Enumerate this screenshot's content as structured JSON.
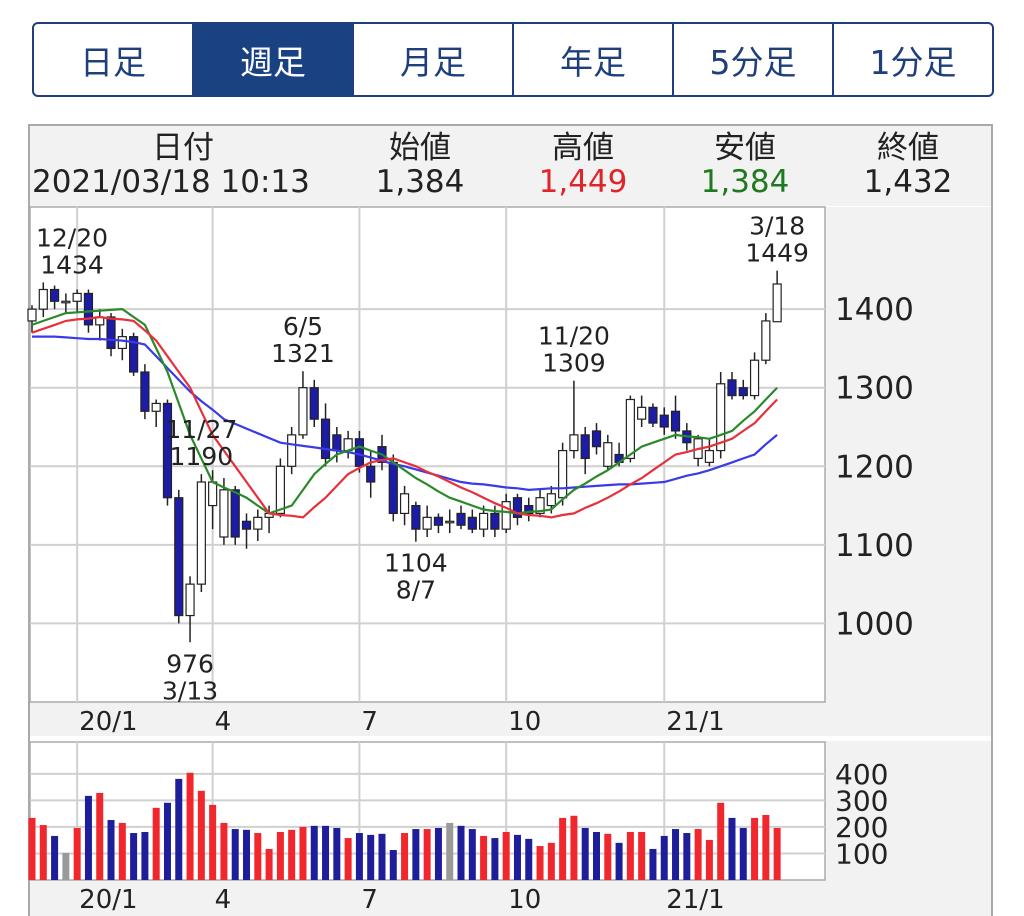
{
  "tabs": [
    {
      "label": "日足"
    },
    {
      "label": "週足",
      "active": true
    },
    {
      "label": "月足"
    },
    {
      "label": "年足"
    },
    {
      "label": "5分足"
    },
    {
      "label": "1分足"
    }
  ],
  "quote": {
    "columns": [
      {
        "label": "日付",
        "value": "2021/03/18 10:13"
      },
      {
        "label": "始値",
        "value": "1,384"
      },
      {
        "label": "高値",
        "value": "1,449",
        "color": "#e0242c"
      },
      {
        "label": "安値",
        "value": "1,384",
        "color": "#1f7a1f"
      },
      {
        "label": "終値",
        "value": "1,432"
      }
    ]
  },
  "chart_data": [
    {
      "type": "candlestick",
      "up_color": "#ffffff",
      "down_color": "#1c1ca6",
      "wick_color": "#222222",
      "categories": [
        null,
        null,
        null,
        null,
        "20/1",
        null,
        null,
        null,
        null,
        null,
        null,
        null,
        null,
        null,
        null,
        null,
        "4",
        null,
        null,
        null,
        null,
        null,
        null,
        null,
        null,
        null,
        null,
        null,
        null,
        "7",
        null,
        null,
        null,
        null,
        null,
        null,
        null,
        null,
        null,
        null,
        null,
        null,
        "10",
        null,
        null,
        null,
        null,
        null,
        null,
        null,
        null,
        null,
        null,
        null,
        null,
        null,
        "21/1",
        null,
        null,
        null,
        null,
        null,
        null,
        null,
        null,
        null,
        null
      ],
      "open": [
        1385,
        1400,
        1425,
        1410,
        1410,
        1420,
        1380,
        1390,
        1350,
        1365,
        1320,
        1270,
        1280,
        1160,
        1010,
        1050,
        1150,
        1110,
        1170,
        1130,
        1120,
        1135,
        1140,
        1200,
        1240,
        1300,
        1260,
        1240,
        1220,
        1235,
        1200,
        1225,
        1205,
        1140,
        1150,
        1120,
        1135,
        1130,
        1140,
        1135,
        1120,
        1140,
        1120,
        1160,
        1150,
        1140,
        1150,
        1160,
        1220,
        1240,
        1245,
        1200,
        1215,
        1210,
        1260,
        1275,
        1265,
        1270,
        1245,
        1210,
        1205,
        1220,
        1310,
        1300,
        1290,
        1335,
        1384
      ],
      "high": [
        1405,
        1434,
        1430,
        1420,
        1425,
        1425,
        1400,
        1395,
        1375,
        1370,
        1330,
        1285,
        1285,
        1170,
        1060,
        1190,
        1195,
        1185,
        1175,
        1140,
        1145,
        1150,
        1210,
        1250,
        1321,
        1310,
        1280,
        1250,
        1245,
        1245,
        1220,
        1240,
        1215,
        1175,
        1155,
        1150,
        1140,
        1145,
        1150,
        1145,
        1150,
        1150,
        1165,
        1165,
        1160,
        1170,
        1175,
        1230,
        1309,
        1250,
        1255,
        1240,
        1230,
        1290,
        1290,
        1280,
        1275,
        1290,
        1255,
        1240,
        1235,
        1320,
        1320,
        1310,
        1345,
        1395,
        1449
      ],
      "low": [
        1370,
        1390,
        1400,
        1395,
        1395,
        1370,
        1360,
        1340,
        1335,
        1315,
        1260,
        1250,
        1150,
        1000,
        976,
        1040,
        1120,
        1100,
        1100,
        1095,
        1105,
        1115,
        1135,
        1190,
        1235,
        1250,
        1200,
        1205,
        1210,
        1192,
        1160,
        1195,
        1130,
        1125,
        1104,
        1110,
        1115,
        1115,
        1120,
        1115,
        1110,
        1110,
        1115,
        1125,
        1130,
        1135,
        1140,
        1150,
        1210,
        1190,
        1215,
        1195,
        1200,
        1205,
        1250,
        1250,
        1240,
        1235,
        1220,
        1200,
        1200,
        1210,
        1285,
        1285,
        1285,
        1330,
        1384
      ],
      "close": [
        1400,
        1425,
        1410,
        1410,
        1420,
        1380,
        1390,
        1350,
        1365,
        1320,
        1270,
        1280,
        1160,
        1010,
        1050,
        1180,
        1180,
        1170,
        1110,
        1120,
        1135,
        1140,
        1200,
        1240,
        1300,
        1260,
        1210,
        1220,
        1235,
        1200,
        1180,
        1205,
        1140,
        1165,
        1120,
        1135,
        1125,
        1130,
        1125,
        1120,
        1140,
        1120,
        1155,
        1135,
        1140,
        1160,
        1165,
        1220,
        1240,
        1210,
        1225,
        1230,
        1205,
        1285,
        1275,
        1255,
        1250,
        1245,
        1230,
        1235,
        1220,
        1305,
        1290,
        1290,
        1335,
        1385,
        1432
      ],
      "series": [
        {
          "color": "#3a3ae8",
          "values": [
            1365,
            1365,
            1365,
            1364,
            1363,
            1362,
            1362,
            1361,
            1360,
            1358,
            1355,
            1340,
            1325,
            1310,
            1295,
            1283,
            1272,
            1260,
            1254,
            1248,
            1242,
            1236,
            1230,
            1228,
            1226,
            1224,
            1222,
            1220,
            1218,
            1215,
            1211,
            1207,
            1203,
            1200,
            1196,
            1192,
            1188,
            1184,
            1180,
            1178,
            1177,
            1175,
            1173,
            1172,
            1170,
            1171,
            1172,
            1172,
            1173,
            1174,
            1175,
            1176,
            1177,
            1177,
            1178,
            1179,
            1180,
            1184,
            1188,
            1191,
            1195,
            1200,
            1205,
            1210,
            1215,
            1228,
            1240
          ]
        },
        {
          "color": "#2a8a2a",
          "values": [
            1380,
            1385,
            1390,
            1395,
            1396,
            1397,
            1398,
            1399,
            1400,
            1390,
            1380,
            1350,
            1320,
            1280,
            1240,
            1210,
            1180,
            1173,
            1167,
            1160,
            1150,
            1140,
            1145,
            1150,
            1170,
            1190,
            1203,
            1215,
            1220,
            1225,
            1220,
            1215,
            1205,
            1195,
            1185,
            1177,
            1168,
            1160,
            1155,
            1150,
            1145,
            1143,
            1142,
            1140,
            1142,
            1143,
            1145,
            1158,
            1170,
            1178,
            1187,
            1195,
            1205,
            1215,
            1225,
            1230,
            1235,
            1240,
            1238,
            1237,
            1235,
            1240,
            1245,
            1258,
            1270,
            1285,
            1300
          ]
        },
        {
          "color": "#e8303a",
          "values": [
            1370,
            1375,
            1380,
            1385,
            1387,
            1388,
            1390,
            1388,
            1387,
            1385,
            1373,
            1360,
            1340,
            1320,
            1300,
            1270,
            1240,
            1220,
            1200,
            1180,
            1160,
            1140,
            1138,
            1137,
            1135,
            1148,
            1160,
            1175,
            1190,
            1198,
            1205,
            1208,
            1210,
            1205,
            1200,
            1193,
            1187,
            1180,
            1173,
            1167,
            1160,
            1153,
            1147,
            1140,
            1138,
            1137,
            1135,
            1138,
            1140,
            1147,
            1153,
            1160,
            1168,
            1177,
            1185,
            1195,
            1205,
            1215,
            1218,
            1222,
            1225,
            1230,
            1235,
            1245,
            1255,
            1270,
            1285
          ]
        }
      ],
      "annotations": [
        {
          "date": "12/20",
          "value": 1434
        },
        {
          "date": "6/5",
          "value": 1321
        },
        {
          "date": "3/13",
          "value": 976
        },
        {
          "date": "8/7",
          "value": 1104
        },
        {
          "date": "11/20",
          "value": 1309
        },
        {
          "date": "11/27",
          "value": 1190
        },
        {
          "date": "3/18",
          "value": 1449
        }
      ],
      "ylim": [
        900,
        1530
      ],
      "yticks": [
        1000,
        1100,
        1200,
        1300,
        1400
      ],
      "grid": true
    },
    {
      "type": "bar",
      "up_color": "#f0282d",
      "down_color": "#1e1e9a",
      "flat_color": "#9a9a9a",
      "categories": [
        null,
        null,
        null,
        null,
        "20/1",
        null,
        null,
        null,
        null,
        null,
        null,
        null,
        null,
        null,
        null,
        null,
        "4",
        null,
        null,
        null,
        null,
        null,
        null,
        null,
        null,
        null,
        null,
        null,
        null,
        "7",
        null,
        null,
        null,
        null,
        null,
        null,
        null,
        null,
        null,
        null,
        null,
        null,
        "10",
        null,
        null,
        null,
        null,
        null,
        null,
        null,
        null,
        null,
        null,
        null,
        null,
        null,
        "21/1",
        null,
        null,
        null,
        null,
        null,
        null,
        null,
        null,
        null,
        null
      ],
      "values": [
        234,
        207,
        166,
        102,
        196,
        317,
        328,
        226,
        215,
        177,
        181,
        272,
        291,
        381,
        404,
        336,
        283,
        215,
        192,
        189,
        177,
        117,
        181,
        189,
        200,
        204,
        204,
        196,
        158,
        177,
        170,
        174,
        113,
        177,
        192,
        192,
        196,
        215,
        204,
        192,
        166,
        158,
        181,
        170,
        155,
        128,
        140,
        234,
        242,
        196,
        181,
        174,
        140,
        181,
        181,
        117,
        166,
        192,
        177,
        192,
        151,
        291,
        234,
        196,
        234,
        245,
        196
      ],
      "ylim": [
        0,
        520
      ],
      "yticks": [
        100,
        200,
        300,
        400
      ],
      "grid": true
    }
  ]
}
